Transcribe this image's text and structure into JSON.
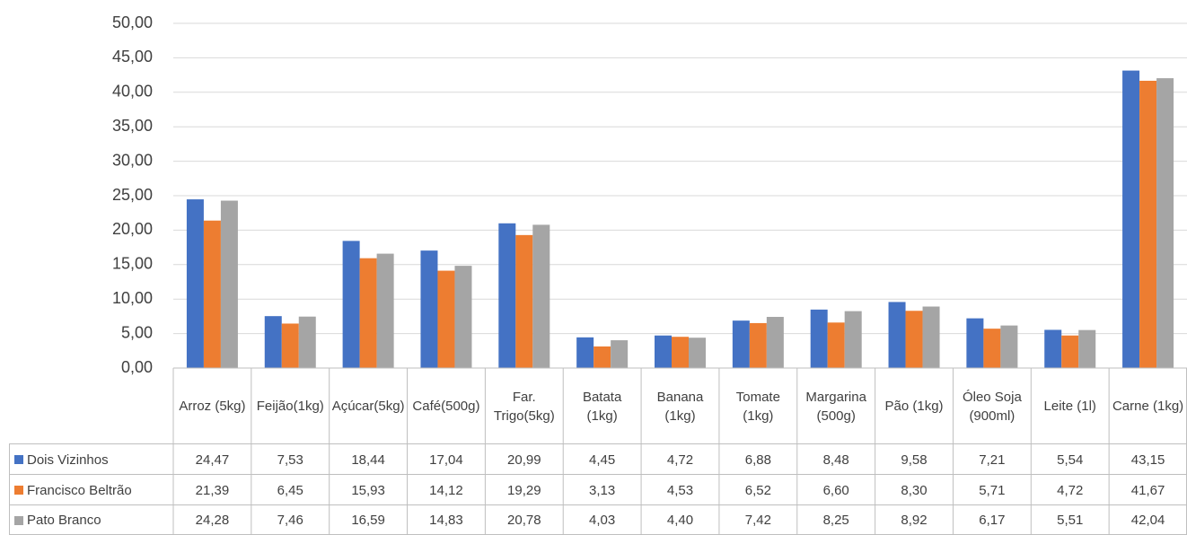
{
  "chart_data": {
    "type": "bar",
    "categories": [
      "Arroz (5kg)",
      "Feijão(1kg)",
      "Açúcar(5kg)",
      "Café(500g)",
      "Far. Trigo(5kg)",
      "Batata (1kg)",
      "Banana (1kg)",
      "Tomate (1kg)",
      "Margarina (500g)",
      "Pão (1kg)",
      "Óleo Soja (900ml)",
      "Leite (1l)",
      "Carne (1kg)"
    ],
    "series": [
      {
        "name": "Dois Vizinhos",
        "color": "#4472c4",
        "values": [
          24.47,
          7.53,
          18.44,
          17.04,
          20.99,
          4.45,
          4.72,
          6.88,
          8.48,
          9.58,
          7.21,
          5.54,
          43.15
        ],
        "value_labels": [
          "24,47",
          "7,53",
          "18,44",
          "17,04",
          "20,99",
          "4,45",
          "4,72",
          "6,88",
          "8,48",
          "9,58",
          "7,21",
          "5,54",
          "43,15"
        ]
      },
      {
        "name": "Francisco Beltrão",
        "color": "#ed7d31",
        "values": [
          21.39,
          6.45,
          15.93,
          14.12,
          19.29,
          3.13,
          4.53,
          6.52,
          6.6,
          8.3,
          5.71,
          4.72,
          41.67
        ],
        "value_labels": [
          "21,39",
          "6,45",
          "15,93",
          "14,12",
          "19,29",
          "3,13",
          "4,53",
          "6,52",
          "6,60",
          "8,30",
          "5,71",
          "4,72",
          "41,67"
        ]
      },
      {
        "name": "Pato Branco",
        "color": "#a5a5a5",
        "values": [
          24.28,
          7.46,
          16.59,
          14.83,
          20.78,
          4.03,
          4.4,
          7.42,
          8.25,
          8.92,
          6.17,
          5.51,
          42.04
        ],
        "value_labels": [
          "24,28",
          "7,46",
          "16,59",
          "14,83",
          "20,78",
          "4,03",
          "4,40",
          "7,42",
          "8,25",
          "8,92",
          "6,17",
          "5,51",
          "42,04"
        ]
      }
    ],
    "ylim": [
      0,
      50
    ],
    "yticks": [
      {
        "value": 0,
        "label": "0,00"
      },
      {
        "value": 5,
        "label": "5,00"
      },
      {
        "value": 10,
        "label": "10,00"
      },
      {
        "value": 15,
        "label": "15,00"
      },
      {
        "value": 20,
        "label": "20,00"
      },
      {
        "value": 25,
        "label": "25,00"
      },
      {
        "value": 30,
        "label": "30,00"
      },
      {
        "value": 35,
        "label": "35,00"
      },
      {
        "value": 40,
        "label": "40,00"
      },
      {
        "value": 45,
        "label": "45,00"
      },
      {
        "value": 50,
        "label": "50,00"
      }
    ],
    "grid": true,
    "legend": "data-table"
  }
}
